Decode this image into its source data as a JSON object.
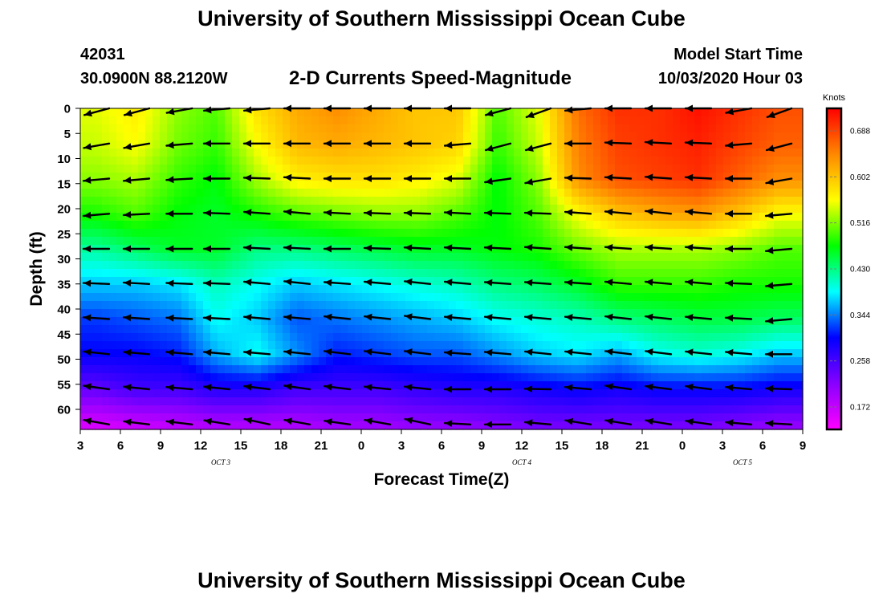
{
  "header": {
    "title": "University of Southern Mississippi Ocean Cube",
    "station_id": "42031",
    "station_coords": "30.0900N 88.2120W",
    "subtitle": "2-D Currents Speed-Magnitude",
    "model_start_label": "Model Start Time",
    "model_start_value": "10/03/2020 Hour 03"
  },
  "footer": {
    "title": "University of Southern Mississippi Ocean Cube"
  },
  "chart_data": {
    "type": "heatmap",
    "title": "2-D Currents Speed-Magnitude",
    "xlabel": "Forecast Time(Z)",
    "ylabel": "Depth (ft)",
    "x_ticks": [
      "3",
      "6",
      "9",
      "12",
      "15",
      "18",
      "21",
      "0",
      "3",
      "6",
      "9",
      "12",
      "15",
      "18",
      "21",
      "0",
      "3",
      "6",
      "9"
    ],
    "x_range_hours": [
      0,
      54
    ],
    "date_labels": [
      {
        "text": "OCT 3",
        "hour": 10.5
      },
      {
        "text": "OCT 4",
        "hour": 33
      },
      {
        "text": "OCT 5",
        "hour": 49.5
      }
    ],
    "y_ticks": [
      0,
      5,
      10,
      15,
      20,
      25,
      30,
      35,
      40,
      45,
      50,
      55,
      60
    ],
    "y_range": [
      0,
      64
    ],
    "colorbar": {
      "unit": "Knots",
      "ticks": [
        0.688,
        0.602,
        0.516,
        0.43,
        0.344,
        0.258,
        0.172
      ],
      "range": [
        0.13,
        0.73
      ],
      "colors": [
        "#ff00ff",
        "#8800ff",
        "#0000ff",
        "#00ffff",
        "#00ff00",
        "#ffff00",
        "#ff8800",
        "#ff0000"
      ]
    },
    "arrow_times_hours": [
      1.2,
      4.2,
      7.4,
      10.2,
      13.2,
      16.2,
      19.2,
      22.2,
      25.2,
      28.2,
      31.2,
      34.2,
      37.2,
      40.2,
      43.2,
      46.2,
      49.2,
      52.2
    ],
    "arrow_depths_ft": [
      0,
      7,
      14,
      21,
      28,
      35,
      42,
      49,
      56,
      63
    ],
    "speed_knots": [
      [
        0.55,
        0.57,
        0.52,
        0.5,
        0.58,
        0.62,
        0.64,
        0.62,
        0.6,
        0.6,
        0.5,
        0.55,
        0.66,
        0.7,
        0.7,
        0.72,
        0.7,
        0.68
      ],
      [
        0.54,
        0.56,
        0.51,
        0.49,
        0.56,
        0.61,
        0.62,
        0.61,
        0.6,
        0.59,
        0.49,
        0.54,
        0.65,
        0.69,
        0.7,
        0.71,
        0.69,
        0.67
      ],
      [
        0.52,
        0.53,
        0.49,
        0.47,
        0.53,
        0.57,
        0.58,
        0.58,
        0.57,
        0.55,
        0.47,
        0.52,
        0.64,
        0.68,
        0.69,
        0.7,
        0.67,
        0.64
      ],
      [
        0.48,
        0.5,
        0.47,
        0.46,
        0.48,
        0.5,
        0.51,
        0.52,
        0.52,
        0.5,
        0.47,
        0.5,
        0.56,
        0.6,
        0.62,
        0.63,
        0.6,
        0.56
      ],
      [
        0.42,
        0.44,
        0.46,
        0.46,
        0.43,
        0.43,
        0.44,
        0.45,
        0.46,
        0.46,
        0.47,
        0.48,
        0.51,
        0.53,
        0.53,
        0.53,
        0.52,
        0.5
      ],
      [
        0.37,
        0.37,
        0.38,
        0.41,
        0.39,
        0.37,
        0.38,
        0.39,
        0.4,
        0.41,
        0.43,
        0.44,
        0.46,
        0.49,
        0.49,
        0.49,
        0.48,
        0.48
      ],
      [
        0.32,
        0.33,
        0.34,
        0.39,
        0.37,
        0.33,
        0.34,
        0.35,
        0.36,
        0.37,
        0.39,
        0.4,
        0.41,
        0.43,
        0.44,
        0.45,
        0.45,
        0.44
      ],
      [
        0.3,
        0.3,
        0.31,
        0.36,
        0.39,
        0.35,
        0.31,
        0.32,
        0.33,
        0.33,
        0.35,
        0.37,
        0.38,
        0.36,
        0.39,
        0.4,
        0.39,
        0.37
      ],
      [
        0.24,
        0.26,
        0.26,
        0.28,
        0.28,
        0.26,
        0.26,
        0.26,
        0.27,
        0.28,
        0.28,
        0.29,
        0.3,
        0.29,
        0.3,
        0.3,
        0.3,
        0.29
      ],
      [
        0.16,
        0.17,
        0.18,
        0.19,
        0.19,
        0.19,
        0.2,
        0.2,
        0.21,
        0.21,
        0.22,
        0.23,
        0.23,
        0.23,
        0.23,
        0.23,
        0.22,
        0.21
      ]
    ],
    "direction_deg": [
      [
        345,
        345,
        350,
        355,
        355,
        0,
        0,
        0,
        0,
        0,
        345,
        340,
        355,
        0,
        0,
        0,
        350,
        340
      ],
      [
        350,
        350,
        355,
        0,
        0,
        0,
        0,
        0,
        0,
        355,
        345,
        345,
        0,
        2,
        3,
        2,
        355,
        345
      ],
      [
        355,
        355,
        357,
        0,
        2,
        3,
        0,
        0,
        0,
        0,
        352,
        350,
        2,
        3,
        4,
        3,
        0,
        350
      ],
      [
        355,
        357,
        0,
        2,
        4,
        5,
        3,
        2,
        2,
        3,
        2,
        2,
        4,
        5,
        6,
        5,
        0,
        355
      ],
      [
        0,
        0,
        0,
        0,
        3,
        3,
        0,
        2,
        3,
        3,
        3,
        4,
        4,
        4,
        4,
        4,
        0,
        355
      ],
      [
        2,
        3,
        2,
        2,
        5,
        6,
        4,
        5,
        6,
        5,
        4,
        4,
        4,
        5,
        5,
        5,
        2,
        355
      ],
      [
        4,
        4,
        3,
        3,
        5,
        5,
        6,
        6,
        7,
        5,
        5,
        5,
        5,
        6,
        6,
        5,
        3,
        355
      ],
      [
        6,
        5,
        5,
        5,
        5,
        6,
        7,
        7,
        7,
        4,
        5,
        6,
        6,
        7,
        7,
        6,
        5,
        0
      ],
      [
        8,
        6,
        5,
        6,
        7,
        8,
        7,
        6,
        6,
        0,
        0,
        1,
        5,
        8,
        7,
        7,
        5,
        2
      ],
      [
        10,
        7,
        7,
        9,
        12,
        10,
        8,
        10,
        12,
        3,
        0,
        5,
        9,
        9,
        9,
        8,
        5,
        3
      ]
    ]
  }
}
